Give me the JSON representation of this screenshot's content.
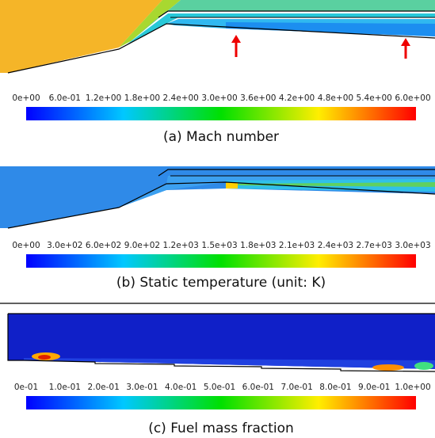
{
  "panels": [
    {
      "ticks": [
        "0e+00",
        "6.0e-01",
        "1.2e+00",
        "1.8e+00",
        "2.4e+00",
        "3.0e+00",
        "3.6e+00",
        "4.2e+00",
        "4.8e+00",
        "5.4e+00",
        "6.0e+00"
      ],
      "caption": "(a) Mach number"
    },
    {
      "ticks": [
        "0e+00",
        "3.0e+02",
        "6.0e+02",
        "9.0e+02",
        "1.2e+03",
        "1.5e+03",
        "1.8e+03",
        "2.1e+03",
        "2.4e+03",
        "2.7e+03",
        "3.0e+03"
      ],
      "caption": "(b) Static temperature (unit: K)"
    },
    {
      "ticks": [
        "0e-01",
        "1.0e-01",
        "2.0e-01",
        "3.0e-01",
        "4.0e-01",
        "5.0e-01",
        "6.0e-01",
        "7.0e-01",
        "8.0e-01",
        "9.0e-01",
        "1.0e+00"
      ],
      "caption": "(c) Fuel mass fraction"
    }
  ]
}
